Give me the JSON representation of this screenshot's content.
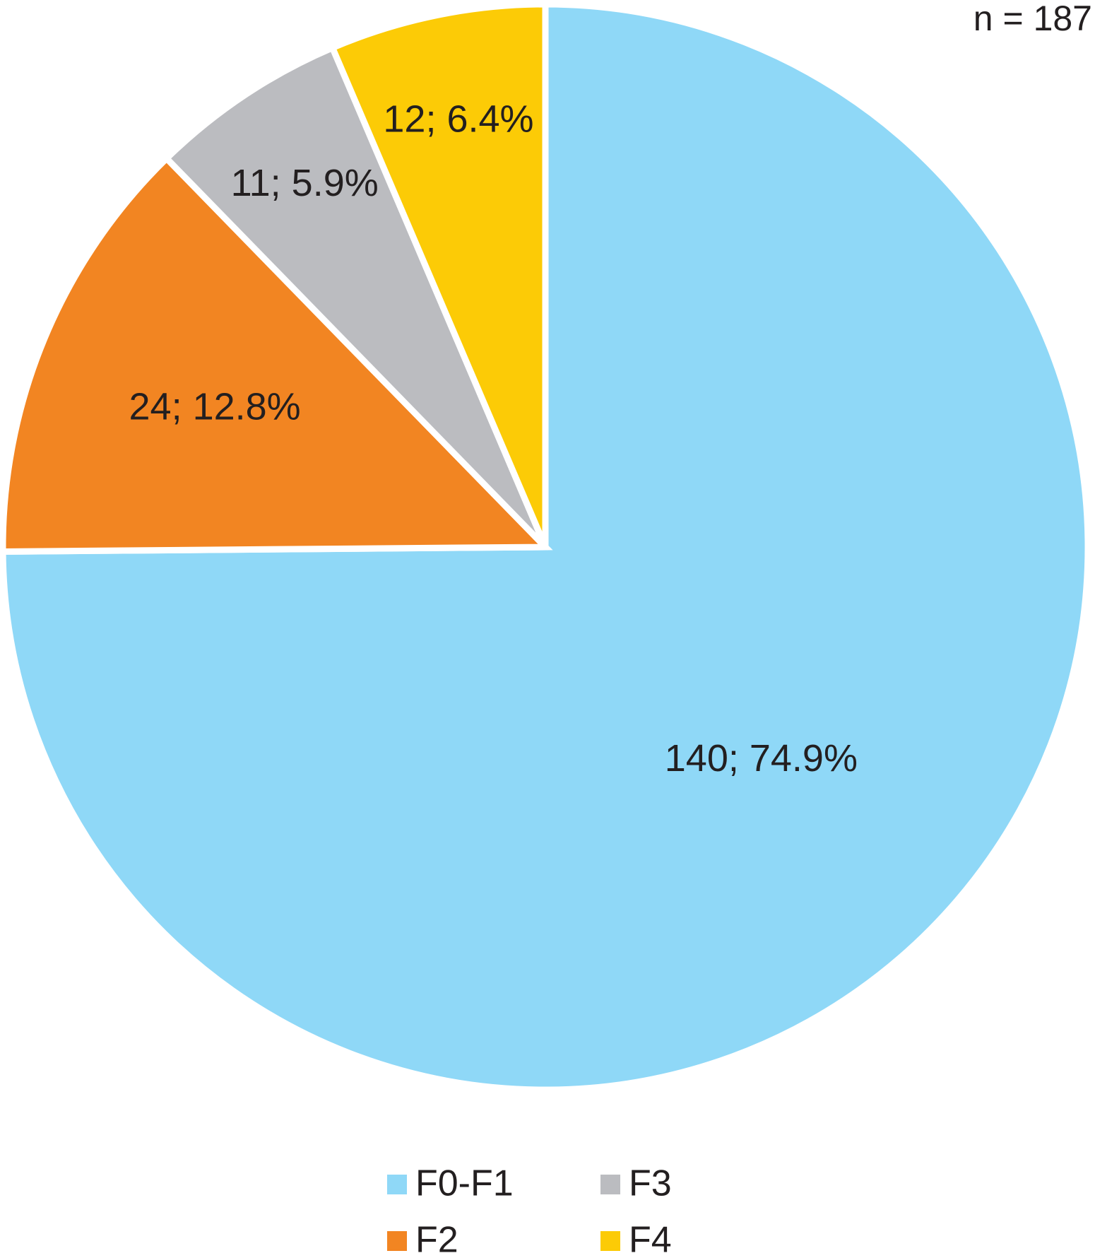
{
  "chart_data": {
    "type": "pie",
    "annotation": "n = 187",
    "categories": [
      "F0-F1",
      "F2",
      "F3",
      "F4"
    ],
    "values": [
      140,
      24,
      11,
      12
    ],
    "value_labels": [
      "140; 74.9%",
      "24; 12.8%",
      "11; 5.9%",
      "12; 6.4%"
    ],
    "colors": [
      "#8fd8f7",
      "#f28522",
      "#bbbcc0",
      "#fccb06"
    ],
    "legend": "bottom"
  }
}
